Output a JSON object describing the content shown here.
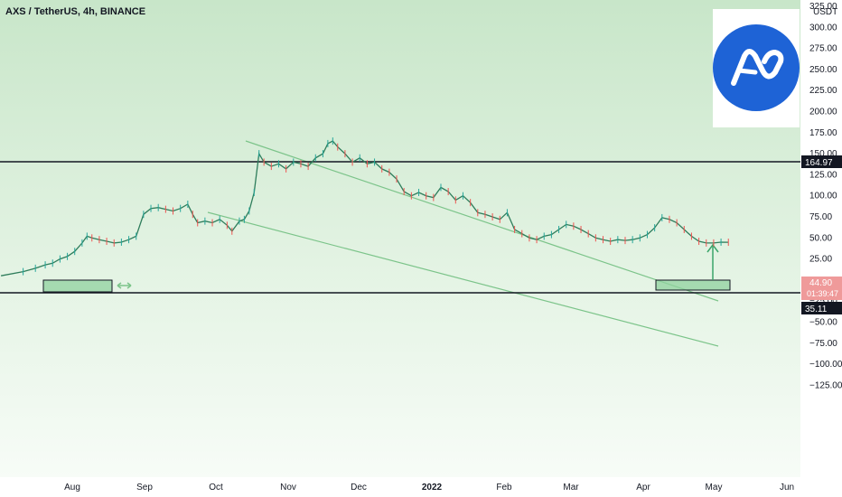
{
  "chart_data": {
    "type": "candlestick",
    "title": "AXS / TetherUS, 4h, BINANCE",
    "currency": "USDT",
    "y_ticks": [
      "325.00",
      "300.00",
      "275.00",
      "250.00",
      "225.00",
      "200.00",
      "175.00",
      "150.00",
      "125.00",
      "100.00",
      "75.00",
      "50.00",
      "25.00",
      "0.00",
      "−25.00",
      "−50.00",
      "−75.00",
      "−100.00",
      "−125.00"
    ],
    "y_tick_values": [
      325,
      300,
      275,
      250,
      225,
      200,
      175,
      150,
      125,
      100,
      75,
      50,
      25,
      0,
      -25,
      -50,
      -75,
      -100,
      -125
    ],
    "x_ticks": [
      "Aug",
      "Sep",
      "Oct",
      "Nov",
      "Dec",
      "2022",
      "Feb",
      "Mar",
      "Apr",
      "May",
      "Jun"
    ],
    "ylim": [
      -140,
      330
    ],
    "horizontal_levels": [
      {
        "value": 164.97,
        "label": "164.97",
        "color": "#131722"
      },
      {
        "value": 35.11,
        "label": "35.11",
        "color": "#131722"
      }
    ],
    "price_badge": {
      "value": 44.9,
      "label": "44.90",
      "countdown": "01:39:47",
      "color": "#ef9a9a"
    },
    "channel_lines": [
      {
        "from": [
          0,
          0
        ],
        "to": [
          0,
          0
        ],
        "role": "upper"
      },
      {
        "from": [
          0,
          0
        ],
        "to": [
          0,
          0
        ],
        "role": "lower"
      }
    ],
    "series_points": [
      [
        -4,
        5
      ],
      [
        5,
        10
      ],
      [
        10,
        14
      ],
      [
        14,
        18
      ],
      [
        17,
        20
      ],
      [
        20,
        25
      ],
      [
        23,
        28
      ],
      [
        26,
        34
      ],
      [
        29,
        44
      ],
      [
        31,
        52
      ],
      [
        33,
        50
      ],
      [
        36,
        48
      ],
      [
        39,
        46
      ],
      [
        42,
        44
      ],
      [
        45,
        45
      ],
      [
        48,
        48
      ],
      [
        51,
        52
      ],
      [
        54,
        78
      ],
      [
        57,
        85
      ],
      [
        60,
        86
      ],
      [
        63,
        84
      ],
      [
        66,
        82
      ],
      [
        69,
        85
      ],
      [
        72,
        90
      ],
      [
        74,
        78
      ],
      [
        76,
        68
      ],
      [
        79,
        70
      ],
      [
        82,
        68
      ],
      [
        85,
        72
      ],
      [
        88,
        65
      ],
      [
        90,
        58
      ],
      [
        93,
        70
      ],
      [
        95,
        72
      ],
      [
        97,
        82
      ],
      [
        99,
        104
      ],
      [
        101,
        150
      ],
      [
        103,
        140
      ],
      [
        106,
        135
      ],
      [
        109,
        138
      ],
      [
        112,
        132
      ],
      [
        115,
        140
      ],
      [
        118,
        138
      ],
      [
        121,
        135
      ],
      [
        124,
        145
      ],
      [
        127,
        150
      ],
      [
        129,
        162
      ],
      [
        131,
        165
      ],
      [
        133,
        158
      ],
      [
        136,
        150
      ],
      [
        139,
        140
      ],
      [
        142,
        145
      ],
      [
        145,
        138
      ],
      [
        148,
        140
      ],
      [
        151,
        132
      ],
      [
        154,
        128
      ],
      [
        157,
        120
      ],
      [
        160,
        105
      ],
      [
        163,
        100
      ],
      [
        166,
        104
      ],
      [
        169,
        100
      ],
      [
        172,
        98
      ],
      [
        175,
        110
      ],
      [
        178,
        105
      ],
      [
        181,
        95
      ],
      [
        184,
        100
      ],
      [
        187,
        92
      ],
      [
        190,
        80
      ],
      [
        193,
        78
      ],
      [
        196,
        75
      ],
      [
        199,
        72
      ],
      [
        202,
        80
      ],
      [
        205,
        60
      ],
      [
        208,
        55
      ],
      [
        211,
        50
      ],
      [
        214,
        48
      ],
      [
        217,
        52
      ],
      [
        220,
        54
      ],
      [
        223,
        60
      ],
      [
        226,
        66
      ],
      [
        229,
        64
      ],
      [
        232,
        60
      ],
      [
        235,
        55
      ],
      [
        238,
        50
      ],
      [
        241,
        48
      ],
      [
        244,
        46
      ],
      [
        247,
        48
      ],
      [
        250,
        47
      ],
      [
        253,
        48
      ],
      [
        256,
        50
      ],
      [
        259,
        54
      ],
      [
        262,
        62
      ],
      [
        265,
        74
      ],
      [
        268,
        72
      ],
      [
        271,
        68
      ],
      [
        274,
        60
      ],
      [
        277,
        52
      ],
      [
        280,
        46
      ],
      [
        283,
        44
      ],
      [
        286,
        44
      ],
      [
        289,
        45
      ],
      [
        292,
        44.9
      ]
    ],
    "annotation_boxes": 2,
    "arrow_up": true
  }
}
